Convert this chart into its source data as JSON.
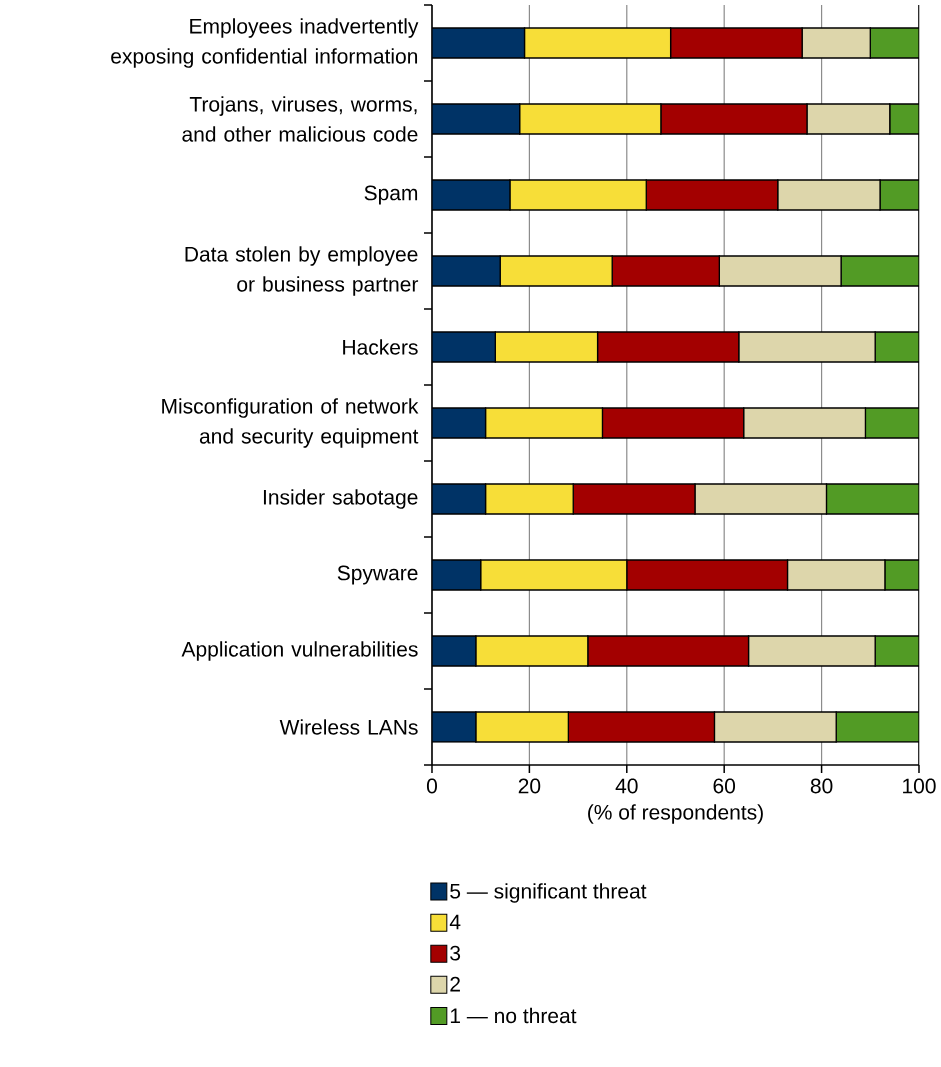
{
  "chart_data": {
    "type": "bar",
    "orientation": "horizontal",
    "stacked": true,
    "categories": [
      "Employees inadvertently exposing confidential information",
      "Trojans, viruses, worms, and other malicious code",
      "Spam",
      "Data stolen by employee or business partner",
      "Hackers",
      "Misconfiguration of network and security equipment",
      "Insider sabotage",
      "Spyware",
      "Application vulnerabilities",
      "Wireless LANs"
    ],
    "series": [
      {
        "name": "5 — significant threat",
        "color": "#003366",
        "values": [
          19,
          18,
          16,
          14,
          13,
          11,
          11,
          10,
          9,
          9
        ]
      },
      {
        "name": "4",
        "color": "#f7de38",
        "values": [
          30,
          29,
          28,
          23,
          21,
          24,
          18,
          30,
          23,
          19
        ]
      },
      {
        "name": "3",
        "color": "#a30000",
        "values": [
          27,
          30,
          27,
          22,
          29,
          29,
          25,
          33,
          33,
          30
        ]
      },
      {
        "name": "2",
        "color": "#ddd6ab",
        "values": [
          14,
          17,
          21,
          25,
          28,
          25,
          27,
          20,
          26,
          25
        ]
      },
      {
        "name": "1 — no threat",
        "color": "#529b25",
        "values": [
          10,
          6,
          8,
          16,
          9,
          11,
          19,
          7,
          9,
          17
        ]
      }
    ],
    "xlim": [
      0,
      100
    ],
    "xticks": [
      0,
      20,
      40,
      60,
      80,
      100
    ],
    "xlabel": "(% of respondents)",
    "grid": "x",
    "legend": "bottom"
  }
}
